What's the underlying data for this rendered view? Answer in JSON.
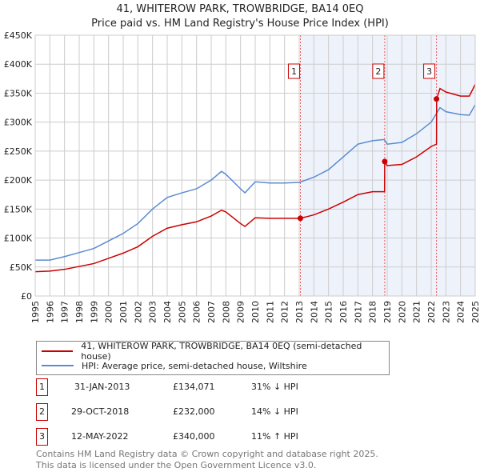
{
  "title": "41, WHITEROW PARK, TROWBRIDGE, BA14 0EQ",
  "subtitle": "Price paid vs. HM Land Registry's House Price Index (HPI)",
  "chart_data": {
    "type": "line",
    "ylim": [
      0,
      450000
    ],
    "xlim": [
      1995,
      2025
    ],
    "yticks": [
      "£0",
      "£50K",
      "£100K",
      "£150K",
      "£200K",
      "£250K",
      "£300K",
      "£350K",
      "£400K",
      "£450K"
    ],
    "xticks": [
      "1995",
      "1996",
      "1997",
      "1998",
      "1999",
      "2000",
      "2001",
      "2002",
      "2003",
      "2004",
      "2005",
      "2006",
      "2007",
      "2008",
      "2009",
      "2010",
      "2011",
      "2012",
      "2013",
      "2014",
      "2015",
      "2016",
      "2017",
      "2018",
      "2019",
      "2020",
      "2021",
      "2022",
      "2023",
      "2024",
      "2025"
    ],
    "grid": true,
    "series": [
      {
        "name": "41, WHITEROW PARK, TROWBRIDGE, BA14 0EQ (semi-detached house)",
        "color": "#cc0000",
        "x": [
          1995,
          1996,
          1997,
          1998,
          1999,
          2000,
          2001,
          2002,
          2003,
          2004,
          2005,
          2006,
          2007,
          2007.7,
          2008,
          2009,
          2009.3,
          2010,
          2011,
          2012,
          2013.08,
          2014,
          2015,
          2016,
          2017,
          2018,
          2018.82,
          2018.83,
          2019,
          2020,
          2021,
          2022,
          2022.36,
          2022.37,
          2022.6,
          2023,
          2024,
          2024.6,
          2025
        ],
        "y": [
          42000,
          43000,
          46000,
          51000,
          56000,
          65000,
          74000,
          85000,
          103000,
          117000,
          123000,
          128000,
          138000,
          148000,
          145000,
          125000,
          120000,
          135000,
          134000,
          134000,
          134071,
          140000,
          150000,
          162000,
          175000,
          180000,
          180000,
          232000,
          225000,
          227000,
          240000,
          258000,
          262000,
          340000,
          358000,
          352000,
          345000,
          345000,
          365000
        ]
      },
      {
        "name": "HPI: Average price, semi-detached house, Wiltshire",
        "color": "#5b8bd0",
        "x": [
          1995,
          1996,
          1997,
          1998,
          1999,
          2000,
          2001,
          2002,
          2003,
          2004,
          2005,
          2006,
          2007,
          2007.7,
          2008,
          2009,
          2009.3,
          2010,
          2011,
          2012,
          2013,
          2014,
          2015,
          2016,
          2017,
          2018,
          2018.8,
          2019,
          2020,
          2021,
          2022,
          2022.6,
          2023,
          2024,
          2024.6,
          2025
        ],
        "y": [
          62000,
          62000,
          68000,
          75000,
          82000,
          95000,
          108000,
          125000,
          150000,
          170000,
          178000,
          185000,
          200000,
          215000,
          210000,
          185000,
          178000,
          197000,
          195000,
          195000,
          196000,
          205000,
          218000,
          240000,
          262000,
          268000,
          270000,
          262000,
          265000,
          280000,
          300000,
          325000,
          318000,
          313000,
          312000,
          330000
        ]
      }
    ],
    "sales": [
      {
        "label": "1",
        "x": 2013.08,
        "y": 134071,
        "date": "31-JAN-2013",
        "price": "£134,071",
        "hpi": "31% ↓ HPI"
      },
      {
        "label": "2",
        "x": 2018.83,
        "y": 232000,
        "date": "29-OCT-2018",
        "price": "£232,000",
        "hpi": "14% ↓ HPI"
      },
      {
        "label": "3",
        "x": 2022.36,
        "y": 340000,
        "date": "12-MAY-2022",
        "price": "£340,000",
        "hpi": "11% ↑ HPI"
      }
    ]
  },
  "footer": [
    "Contains HM Land Registry data © Crown copyright and database right 2025.",
    "This data is licensed under the Open Government Licence v3.0."
  ]
}
